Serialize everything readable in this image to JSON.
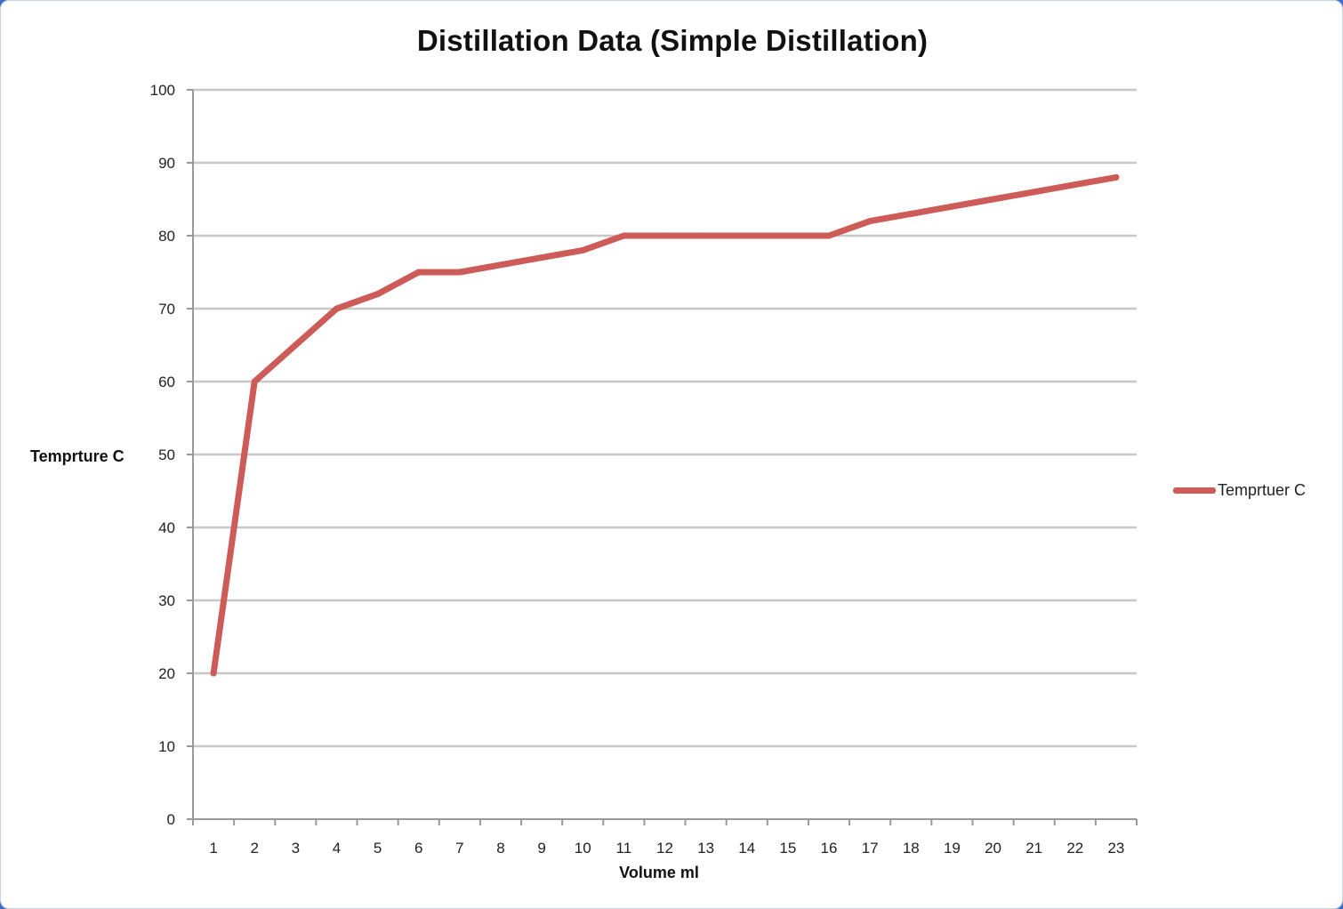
{
  "chart_data": {
    "type": "line",
    "title": "Distillation Data (Simple Distillation)",
    "xlabel": "Volume ml",
    "ylabel": "Temprture C",
    "categories": [
      "1",
      "2",
      "3",
      "4",
      "5",
      "6",
      "7",
      "8",
      "9",
      "10",
      "11",
      "12",
      "13",
      "14",
      "15",
      "16",
      "17",
      "18",
      "19",
      "20",
      "21",
      "22",
      "23"
    ],
    "series": [
      {
        "name": "Temprtuer C",
        "color": "#cd5b57",
        "values": [
          20,
          60,
          65,
          70,
          72,
          75,
          75,
          76,
          77,
          78,
          80,
          80,
          80,
          80,
          80,
          80,
          82,
          83,
          84,
          85,
          86,
          87,
          88
        ]
      }
    ],
    "ylim": [
      0,
      100
    ],
    "yticks": [
      0,
      10,
      20,
      30,
      40,
      50,
      60,
      70,
      80,
      90,
      100
    ],
    "grid": true,
    "legend": "right"
  }
}
